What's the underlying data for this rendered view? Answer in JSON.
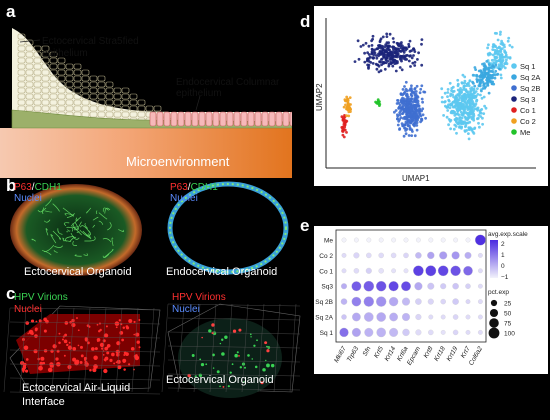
{
  "panels": {
    "a": {
      "letter": "a",
      "ecto_label_1": "Ectocervical Stra5fied",
      "ecto_label_2": "epithelium",
      "endo_label_1": "Endocervical Columnar",
      "endo_label_2": "epithelium",
      "micro_label": "Microenvironment"
    },
    "b": {
      "letter": "b",
      "left": {
        "marker1": "P63",
        "marker2": "CDH1",
        "marker3": "Nuclei",
        "caption": "Ectocervical Organoid"
      },
      "right": {
        "marker1": "P63",
        "marker2": "CDH1",
        "marker3": "Nuclei",
        "caption": "Endocervical Organoid"
      }
    },
    "c": {
      "letter": "c",
      "left": {
        "marker1": "HPV Virions",
        "marker2": "Nuclei",
        "caption_1": "Ectocervical Air-Liquid",
        "caption_2": "Interface"
      },
      "right": {
        "marker1": "HPV Virions",
        "marker2": "Nuclei",
        "caption": "Ectocervical Organoid"
      }
    },
    "d": {
      "letter": "d"
    },
    "e": {
      "letter": "e"
    }
  },
  "colors": {
    "red_marker": "#ff3030",
    "green_marker": "#39d353",
    "blue_marker": "#5b8cff"
  },
  "chart_data": [
    {
      "type": "scatter",
      "xlabel": "UMAP1",
      "ylabel": "UMAP2",
      "legend_position": "right",
      "series": [
        {
          "name": "Sq 1",
          "color": "#5cc8f0"
        },
        {
          "name": "Sq 2A",
          "color": "#3aa7e0"
        },
        {
          "name": "Sq 2B",
          "color": "#3f6fd0"
        },
        {
          "name": "Sq 3",
          "color": "#1b237a"
        },
        {
          "name": "Co 1",
          "color": "#e02020"
        },
        {
          "name": "Co 2",
          "color": "#f0a020"
        },
        {
          "name": "Me",
          "color": "#22c32a"
        }
      ]
    },
    {
      "type": "heatmap",
      "categories_y": [
        "Me",
        "Co 2",
        "Co 1",
        "Sq3",
        "Sq 2B",
        "Sq 2A",
        "Sq 1"
      ],
      "categories_x": [
        "Mki67",
        "Trp63",
        "Sfn",
        "Krt5",
        "Krt14",
        "Krt6a",
        "Epcam",
        "Krt8",
        "Krt18",
        "Krt19",
        "Krt7",
        "Col6a2"
      ],
      "color_legend_title": "avg.exp.scale",
      "color_ticks": [
        "2",
        "1",
        "0",
        "−1"
      ],
      "size_legend_title": "pct.exp",
      "size_ticks": [
        "25",
        "50",
        "75",
        "100"
      ],
      "size_values": [
        25,
        50,
        75,
        100
      ],
      "pct_exp": [
        [
          10,
          10,
          10,
          10,
          10,
          10,
          10,
          10,
          10,
          10,
          10,
          95
        ],
        [
          10,
          20,
          15,
          15,
          15,
          15,
          25,
          35,
          45,
          45,
          30,
          10
        ],
        [
          10,
          15,
          20,
          15,
          10,
          10,
          90,
          95,
          90,
          85,
          70,
          10
        ],
        [
          20,
          75,
          90,
          85,
          80,
          75,
          45,
          30,
          20,
          25,
          15,
          10
        ],
        [
          25,
          70,
          85,
          85,
          65,
          45,
          25,
          20,
          15,
          25,
          10,
          10
        ],
        [
          15,
          55,
          70,
          70,
          55,
          45,
          20,
          10,
          10,
          15,
          10,
          10
        ],
        [
          65,
          60,
          60,
          70,
          60,
          35,
          20,
          15,
          10,
          15,
          10,
          10
        ]
      ],
      "avg_exp": [
        [
          -1,
          -1,
          -1,
          -1,
          -1,
          -1,
          -1,
          -1,
          -1,
          -1,
          -1,
          2.4
        ],
        [
          -0.6,
          -0.5,
          -0.6,
          -0.6,
          -0.6,
          -0.5,
          0,
          0.4,
          0.5,
          0.6,
          0.2,
          -0.6
        ],
        [
          -0.6,
          -0.6,
          -0.4,
          -0.7,
          -0.7,
          -0.7,
          2.1,
          2.1,
          2,
          1.8,
          1.4,
          -0.6
        ],
        [
          0.2,
          1.6,
          1.6,
          1.8,
          2,
          1.9,
          0.3,
          -0.2,
          -0.3,
          -0.2,
          -0.4,
          -0.6
        ],
        [
          0.1,
          1,
          1,
          0.7,
          0.3,
          0,
          -0.4,
          -0.5,
          -0.5,
          -0.3,
          -0.5,
          -0.6
        ],
        [
          -0.2,
          0.3,
          0.2,
          0.3,
          0.2,
          0.1,
          -0.5,
          -0.6,
          -0.6,
          -0.5,
          -0.6,
          -0.6
        ],
        [
          1.3,
          0.4,
          0.1,
          0.1,
          0,
          -0.3,
          -0.6,
          -0.6,
          -0.7,
          -0.5,
          -0.6,
          -0.6
        ]
      ]
    }
  ]
}
